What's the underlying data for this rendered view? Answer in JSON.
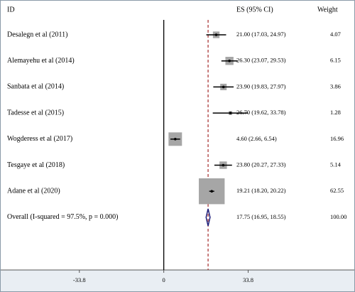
{
  "chart_data": {
    "type": "forest",
    "headers": [
      "ID",
      "ES (95% CI)",
      "Weight"
    ],
    "categories": [
      "Desalegn et al (2011)",
      "Alemayehu et al (2014)",
      "Sanbata et al (2014)",
      "Tadesse et al (2015)",
      "Wogderess et al (2017)",
      "Tesgaye et al (2018)",
      "Adane et al (2020)",
      "Overall  (I-squared = 97.5%, p = 0.000)"
    ],
    "values": [
      21.0,
      26.3,
      23.9,
      26.7,
      4.6,
      23.8,
      19.21,
      17.75
    ],
    "lower": [
      17.03,
      23.07,
      19.83,
      19.62,
      2.66,
      20.27,
      18.2,
      16.95
    ],
    "upper": [
      24.97,
      29.53,
      27.97,
      33.78,
      6.54,
      27.33,
      20.22,
      18.55
    ],
    "value_labels": [
      "21.00 (17.03, 24.97)",
      "26.30 (23.07, 29.53)",
      "23.90 (19.83, 27.97)",
      "26.70 (19.62, 33.78)",
      "4.60 (2.66, 6.54)",
      "23.80 (20.27, 27.33)",
      "19.21 (18.20, 20.22)",
      "17.75 (16.95, 18.55)"
    ],
    "weights": [
      4.07,
      6.15,
      3.86,
      1.28,
      16.96,
      5.14,
      62.55,
      100.0
    ],
    "weight_labels": [
      "4.07",
      "6.15",
      "3.86",
      "1.28",
      "16.96",
      "5.14",
      "62.55",
      "100.00"
    ],
    "xlim": [
      -65.3,
      76.3
    ],
    "xticks": [
      -33.8,
      0,
      33.8
    ],
    "box_color": "#a6a6a6",
    "ci_color": "#000000",
    "diamond_color": "#1f1f7a",
    "overall_line_color": "#a52a2a"
  }
}
